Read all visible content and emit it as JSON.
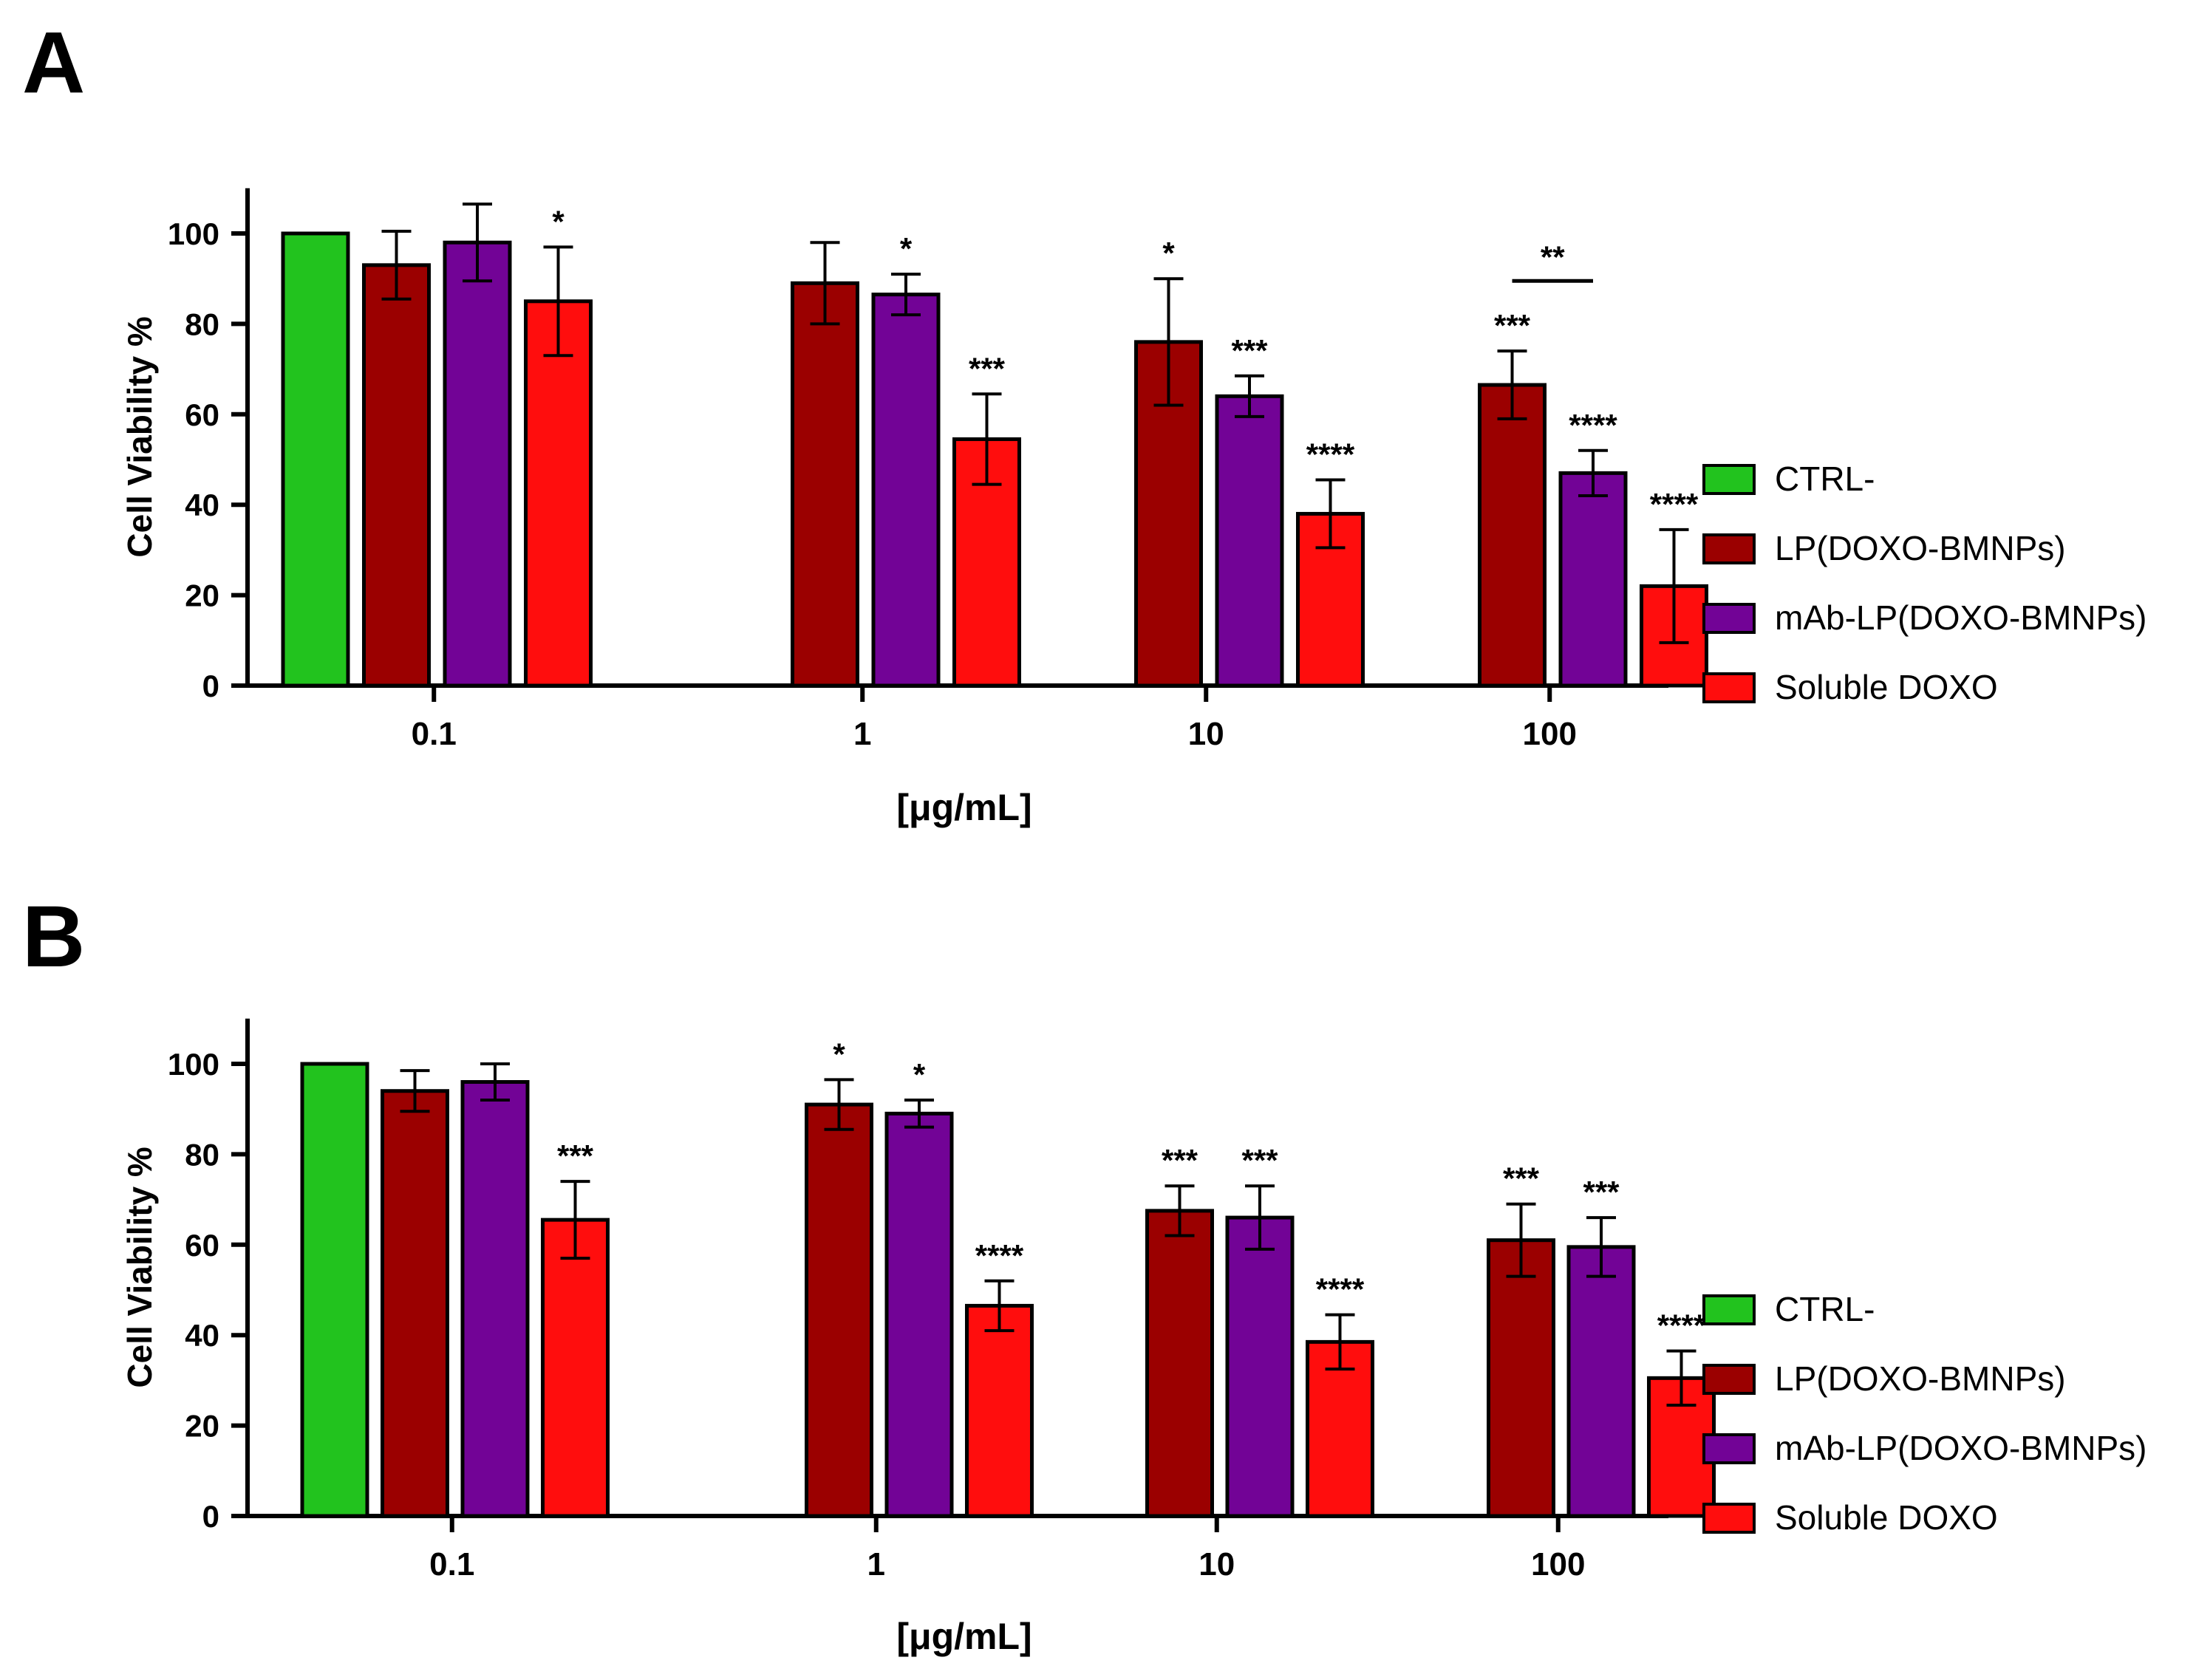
{
  "legend": [
    {
      "name": "CTRL-",
      "color": "#22c31e"
    },
    {
      "name": "LP(DOXO-BMNPs)",
      "color": "#9b0000"
    },
    {
      "name": "mAb-LP(DOXO-BMNPs)",
      "color": "#720396"
    },
    {
      "name": "Soluble DOXO",
      "color": "#ff0d0d"
    }
  ],
  "chart_data": [
    {
      "panel": "A",
      "type": "bar",
      "ylabel": "Cell Viability %",
      "xlabel": "[μg/mL]",
      "ylim": [
        0,
        110
      ],
      "yticks": [
        0,
        20,
        40,
        60,
        80,
        100
      ],
      "categories": [
        "0.1",
        "1",
        "10",
        "100"
      ],
      "series": [
        {
          "name": "CTRL-",
          "values": [
            100,
            null,
            null,
            null
          ],
          "errors": [
            0,
            null,
            null,
            null
          ],
          "sig": [
            "",
            "",
            "",
            ""
          ]
        },
        {
          "name": "LP(DOXO-BMNPs)",
          "values": [
            93,
            89,
            76,
            66.5
          ],
          "errors": [
            7.5,
            9,
            14,
            7.5
          ],
          "sig": [
            "",
            "",
            "*",
            "***"
          ]
        },
        {
          "name": "mAb-LP(DOXO-BMNPs)",
          "values": [
            98,
            86.5,
            64,
            47
          ],
          "errors": [
            8.5,
            4.5,
            4.5,
            5
          ],
          "sig": [
            "",
            "*",
            "***",
            "****"
          ]
        },
        {
          "name": "Soluble DOXO",
          "values": [
            85,
            54.5,
            38,
            22
          ],
          "errors": [
            12,
            10,
            7.5,
            12.5
          ],
          "sig": [
            "*",
            "***",
            "****",
            "****"
          ]
        }
      ],
      "comparisons": [
        {
          "group": "100",
          "from": "LP(DOXO-BMNPs)",
          "to": "mAb-LP(DOXO-BMNPs)",
          "label": "**",
          "y": 89.5
        }
      ]
    },
    {
      "panel": "B",
      "type": "bar",
      "ylabel": "Cell Viability %",
      "xlabel": "[μg/mL]",
      "ylim": [
        0,
        110
      ],
      "yticks": [
        0,
        20,
        40,
        60,
        80,
        100
      ],
      "categories": [
        "0.1",
        "1",
        "10",
        "100"
      ],
      "series": [
        {
          "name": "CTRL-",
          "values": [
            100,
            null,
            null,
            null
          ],
          "errors": [
            0,
            null,
            null,
            null
          ],
          "sig": [
            "",
            "",
            "",
            ""
          ]
        },
        {
          "name": "LP(DOXO-BMNPs)",
          "values": [
            94,
            91,
            67.5,
            61
          ],
          "errors": [
            4.5,
            5.5,
            5.5,
            8
          ],
          "sig": [
            "",
            "*",
            "***",
            "***"
          ]
        },
        {
          "name": "mAb-LP(DOXO-BMNPs)",
          "values": [
            96,
            89,
            66,
            59.5
          ],
          "errors": [
            4,
            3,
            7,
            6.5
          ],
          "sig": [
            "",
            "*",
            "***",
            "***"
          ]
        },
        {
          "name": "Soluble DOXO",
          "values": [
            65.5,
            46.5,
            38.5,
            30.5
          ],
          "errors": [
            8.5,
            5.5,
            6,
            6
          ],
          "sig": [
            "***",
            "****",
            "****",
            "****"
          ]
        }
      ],
      "comparisons": []
    }
  ]
}
